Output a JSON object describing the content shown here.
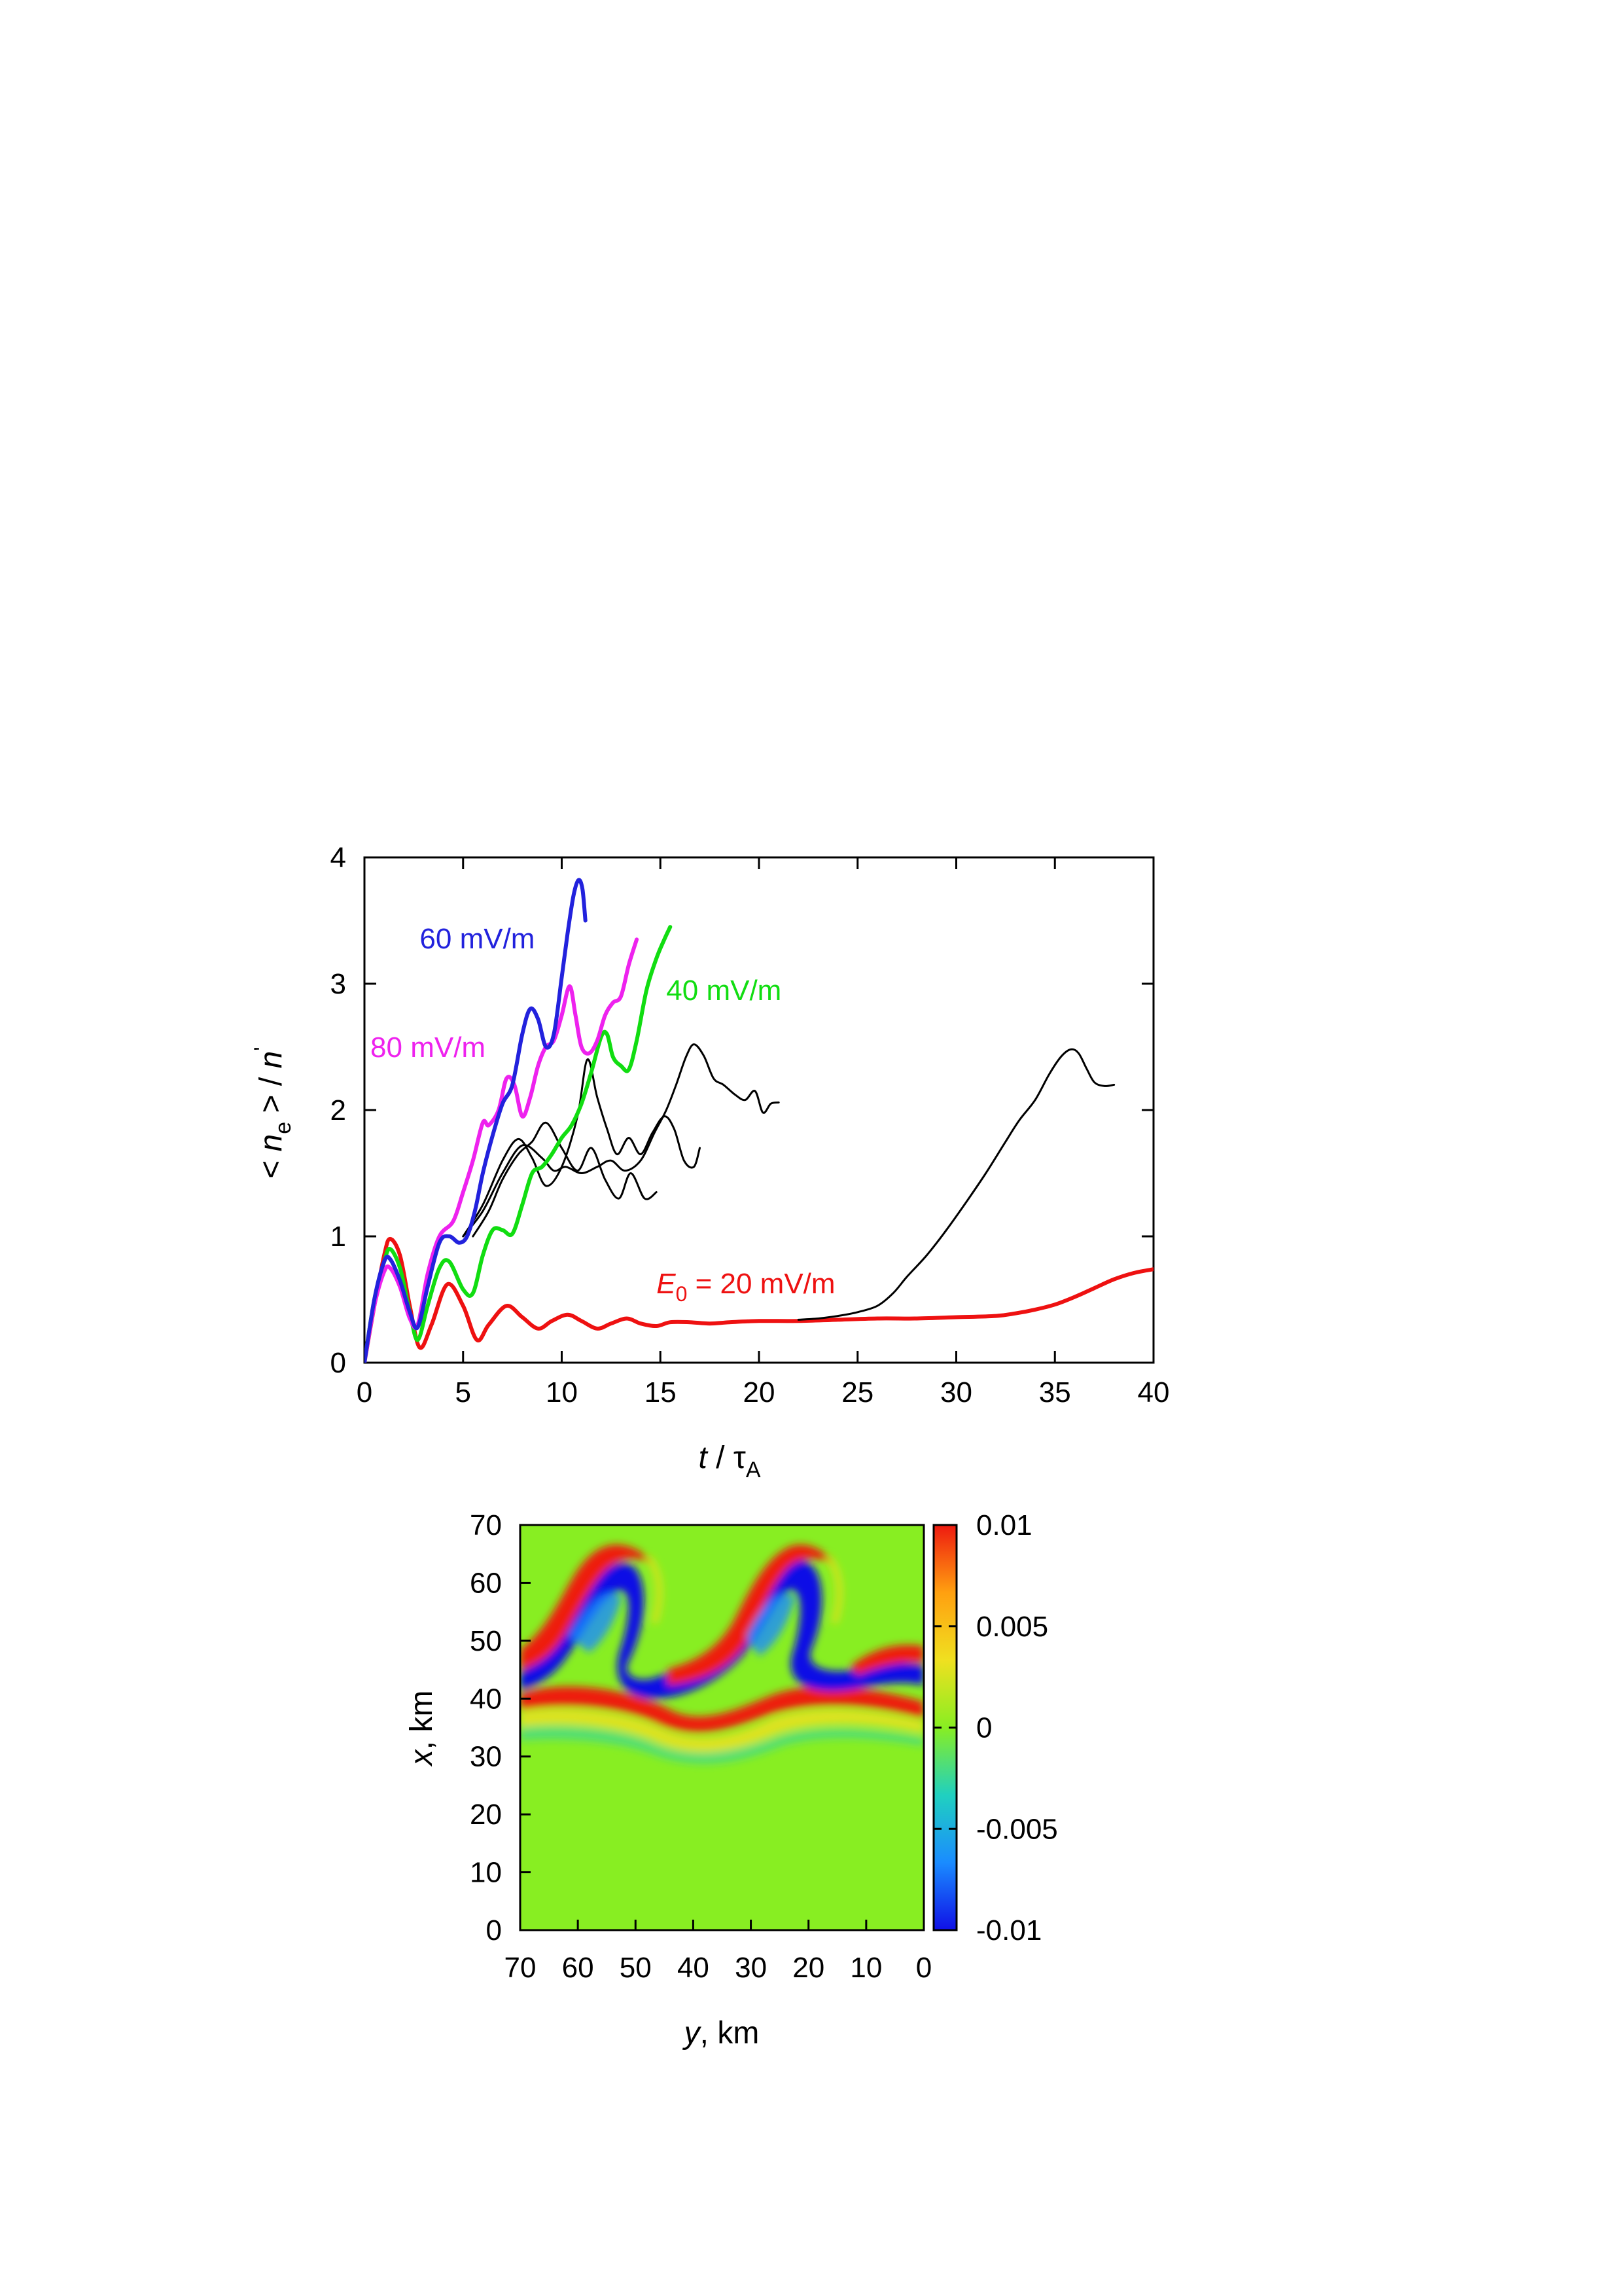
{
  "chart_data": [
    {
      "type": "line",
      "xlabel": {
        "var": "t",
        "sep": " / ",
        "sym": "τ",
        "sub": "A"
      },
      "ylabel": {
        "lt": "< ",
        "var": "n",
        "sub": "e",
        "gt": " > / ",
        "var2": "n",
        "prime": "'"
      },
      "xlim": [
        0,
        40
      ],
      "ylim": [
        0,
        4
      ],
      "xticks": [
        "0",
        "5",
        "10",
        "15",
        "20",
        "25",
        "30",
        "35",
        "40"
      ],
      "yticks": [
        "0",
        "1",
        "2",
        "3",
        "4"
      ],
      "grid": false,
      "colors": {
        "red": "#ee1111",
        "green": "#11dd11",
        "blue": "#2222dd",
        "magenta": "#ee22ee",
        "black": "#000000"
      },
      "annotations": [
        {
          "id": "ann-60",
          "text": "60 mV/m",
          "color": "#2222dd",
          "x": 2.8,
          "y": 3.28
        },
        {
          "id": "ann-40",
          "text": "40 mV/m",
          "color": "#11dd11",
          "x": 15.3,
          "y": 2.87
        },
        {
          "id": "ann-80",
          "text": "80 mV/m",
          "color": "#ee22ee",
          "x": 0.3,
          "y": 2.42
        },
        {
          "id": "ann-20",
          "var": "E",
          "sub": "0",
          "text": " = 20 mV/m",
          "color": "#ee1111",
          "x": 14.8,
          "y": 0.55
        }
      ],
      "series": [
        {
          "id": "red",
          "color": "#ee1111",
          "width": 6,
          "x": [
            0,
            0.5,
            1,
            1.3,
            1.8,
            2.3,
            2.8,
            3.4,
            4.2,
            5,
            5.7,
            6.3,
            7.2,
            8,
            8.8,
            9.5,
            10.3,
            11,
            11.8,
            12.5,
            13.3,
            14,
            14.8,
            15.5,
            16.5,
            17.5,
            18.5,
            20,
            22,
            24,
            26,
            28,
            30,
            32,
            33,
            34,
            35,
            36,
            37,
            38,
            39,
            40
          ],
          "y": [
            0,
            0.45,
            0.85,
            0.98,
            0.85,
            0.45,
            0.12,
            0.3,
            0.62,
            0.45,
            0.18,
            0.3,
            0.45,
            0.36,
            0.27,
            0.33,
            0.38,
            0.33,
            0.27,
            0.31,
            0.35,
            0.31,
            0.29,
            0.32,
            0.32,
            0.31,
            0.32,
            0.33,
            0.33,
            0.34,
            0.35,
            0.35,
            0.36,
            0.37,
            0.39,
            0.42,
            0.46,
            0.52,
            0.59,
            0.66,
            0.71,
            0.74
          ]
        },
        {
          "id": "black-long",
          "color": "#000000",
          "width": 3,
          "x": [
            22,
            23,
            24,
            25,
            26,
            26.8,
            27.5,
            28.5,
            29.5,
            30.5,
            31.5,
            32.5,
            33.2,
            34,
            34.7,
            35.3,
            35.8,
            36.2,
            36.6,
            37,
            37.5,
            38
          ],
          "y": [
            0.34,
            0.35,
            0.37,
            0.4,
            0.45,
            0.55,
            0.68,
            0.85,
            1.05,
            1.27,
            1.5,
            1.75,
            1.92,
            2.08,
            2.28,
            2.42,
            2.48,
            2.45,
            2.33,
            2.22,
            2.19,
            2.2
          ]
        },
        {
          "id": "black-a",
          "color": "#000000",
          "width": 3,
          "x": [
            5,
            6,
            7,
            8,
            9,
            9.6,
            10.2,
            11,
            11.8,
            12.5,
            13.2,
            14,
            14.7,
            15.3,
            15.8,
            16.3,
            16.7,
            17.2,
            17.7,
            18.2,
            18.8,
            19.3,
            19.8,
            20.2,
            20.6,
            21
          ],
          "y": [
            1.0,
            1.2,
            1.5,
            1.72,
            1.62,
            1.52,
            1.55,
            1.5,
            1.55,
            1.6,
            1.52,
            1.6,
            1.82,
            2.0,
            2.2,
            2.42,
            2.52,
            2.43,
            2.25,
            2.2,
            2.12,
            2.08,
            2.15,
            1.98,
            2.05,
            2.06
          ]
        },
        {
          "id": "black-b",
          "color": "#000000",
          "width": 3,
          "x": [
            5,
            6,
            7,
            7.8,
            8.5,
            9.2,
            10,
            10.8,
            11.3,
            11.8,
            12.3,
            12.8,
            13.4,
            14,
            14.6,
            15.2,
            15.7,
            16.2,
            16.7,
            17
          ],
          "y": [
            1.0,
            1.25,
            1.6,
            1.77,
            1.62,
            1.4,
            1.55,
            1.95,
            2.4,
            2.1,
            1.85,
            1.65,
            1.78,
            1.65,
            1.82,
            1.95,
            1.85,
            1.6,
            1.55,
            1.7
          ]
        },
        {
          "id": "black-c",
          "color": "#000000",
          "width": 3,
          "x": [
            5.5,
            6.3,
            7,
            7.8,
            8.5,
            9.2,
            10,
            10.8,
            11.5,
            12.2,
            12.9,
            13.5,
            14.2,
            14.8
          ],
          "y": [
            1.0,
            1.2,
            1.45,
            1.65,
            1.75,
            1.9,
            1.7,
            1.52,
            1.7,
            1.45,
            1.3,
            1.5,
            1.3,
            1.35
          ]
        },
        {
          "id": "green",
          "color": "#11dd11",
          "width": 6,
          "x": [
            0,
            0.5,
            1,
            1.3,
            1.8,
            2.3,
            2.7,
            3.2,
            3.8,
            4.3,
            5,
            5.5,
            6,
            6.5,
            7,
            7.5,
            8,
            8.5,
            9,
            9.5,
            10,
            10.5,
            11,
            11.5,
            12,
            12.3,
            12.6,
            13,
            13.4,
            13.8,
            14.3,
            14.8,
            15.2,
            15.5
          ],
          "y": [
            0,
            0.5,
            0.8,
            0.9,
            0.75,
            0.4,
            0.18,
            0.45,
            0.75,
            0.8,
            0.58,
            0.55,
            0.85,
            1.05,
            1.05,
            1.02,
            1.25,
            1.5,
            1.55,
            1.65,
            1.78,
            1.88,
            2.05,
            2.3,
            2.58,
            2.6,
            2.42,
            2.35,
            2.32,
            2.55,
            2.95,
            3.2,
            3.35,
            3.45
          ]
        },
        {
          "id": "magenta",
          "color": "#ee22ee",
          "width": 6,
          "x": [
            0,
            0.5,
            1,
            1.3,
            1.8,
            2.3,
            2.7,
            3.2,
            3.8,
            4.5,
            5,
            5.5,
            6,
            6.3,
            6.8,
            7.2,
            7.6,
            8,
            8.4,
            8.8,
            9.2,
            9.6,
            10,
            10.4,
            10.7,
            11,
            11.4,
            11.8,
            12.2,
            12.6,
            13,
            13.4,
            13.8
          ],
          "y": [
            0,
            0.45,
            0.72,
            0.75,
            0.6,
            0.35,
            0.3,
            0.7,
            1.0,
            1.12,
            1.35,
            1.6,
            1.9,
            1.88,
            2.0,
            2.25,
            2.2,
            1.95,
            2.1,
            2.35,
            2.5,
            2.55,
            2.75,
            2.98,
            2.75,
            2.5,
            2.45,
            2.55,
            2.75,
            2.85,
            2.9,
            3.15,
            3.35
          ]
        },
        {
          "id": "blue",
          "color": "#2222dd",
          "width": 6,
          "x": [
            0,
            0.5,
            1,
            1.3,
            1.8,
            2.3,
            2.7,
            3.2,
            3.8,
            4.3,
            4.8,
            5.2,
            5.6,
            6,
            6.5,
            7,
            7.5,
            8,
            8.4,
            8.8,
            9.2,
            9.6,
            10,
            10.3,
            10.6,
            10.85,
            11.05,
            11.2
          ],
          "y": [
            0,
            0.5,
            0.8,
            0.82,
            0.65,
            0.4,
            0.28,
            0.6,
            0.95,
            1.0,
            0.95,
            1.0,
            1.2,
            1.5,
            1.8,
            2.05,
            2.2,
            2.6,
            2.8,
            2.72,
            2.5,
            2.6,
            3.05,
            3.4,
            3.7,
            3.82,
            3.75,
            3.5
          ]
        }
      ]
    },
    {
      "type": "heatmap",
      "xlabel": {
        "var": "y",
        "rest": ", km"
      },
      "ylabel": {
        "var": "x",
        "rest": ", km"
      },
      "xlim": [
        70,
        0
      ],
      "ylim": [
        0,
        70
      ],
      "xticks": [
        "70",
        "60",
        "50",
        "40",
        "30",
        "20",
        "10",
        "0"
      ],
      "yticks": [
        "0",
        "10",
        "20",
        "30",
        "40",
        "50",
        "60",
        "70"
      ],
      "colorbar": {
        "range": [
          -0.01,
          0.01
        ],
        "ticks": [
          "0.01",
          "0.005",
          "0",
          "-0.005",
          "-0.01"
        ],
        "colormap": [
          "#1010e6",
          "#1a8cff",
          "#20d0c0",
          "#88ee22",
          "#f0e020",
          "#ffa010",
          "#ee1a10"
        ]
      },
      "background_color": "#88ee22"
    }
  ]
}
